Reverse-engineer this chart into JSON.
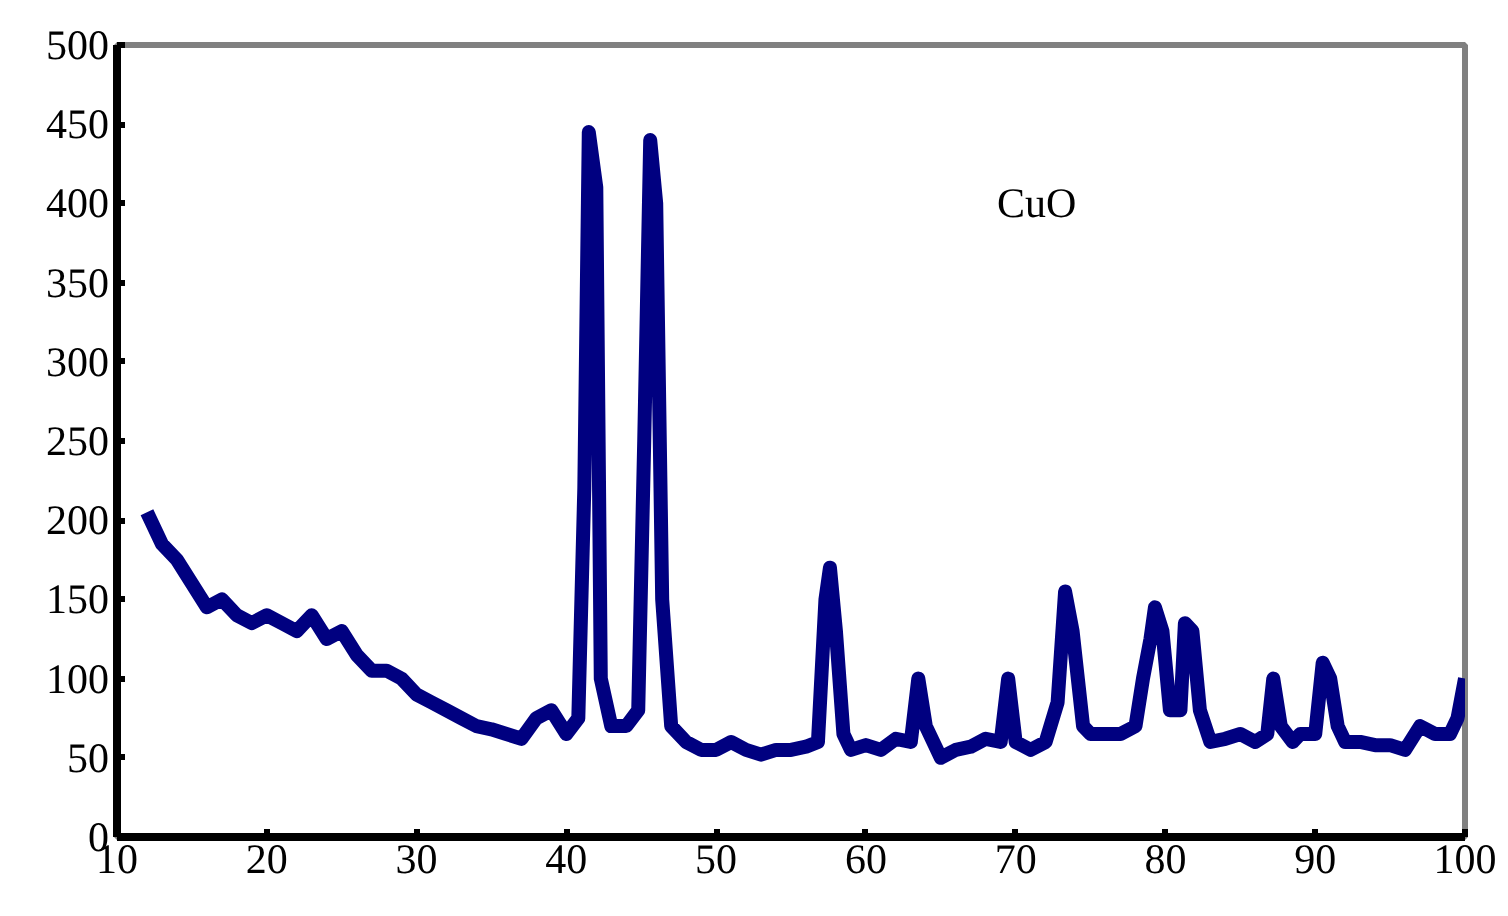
{
  "chart_data": {
    "type": "line",
    "x": [
      12,
      13,
      14,
      15,
      16,
      17,
      18,
      19,
      20,
      21,
      22,
      23,
      24,
      25,
      26,
      27,
      28,
      29,
      30,
      31,
      32,
      33,
      34,
      35,
      36,
      37,
      38,
      39,
      40,
      40.8,
      41.2,
      41.5,
      42,
      42.3,
      43,
      44,
      44.8,
      45.2,
      45.6,
      46,
      46.4,
      47,
      48,
      49,
      50,
      51,
      52,
      53,
      54,
      55,
      56,
      56.8,
      57.3,
      57.6,
      58,
      58.5,
      59,
      60,
      61,
      62,
      63,
      63.5,
      64,
      65,
      66,
      67,
      68,
      69,
      69.5,
      70,
      71,
      72,
      72.8,
      73.3,
      73.8,
      74.5,
      75,
      76,
      77,
      78,
      78.5,
      79,
      79.3,
      79.8,
      80.3,
      81,
      81.3,
      81.8,
      82.3,
      83,
      84,
      85,
      86,
      86.8,
      87.2,
      87.7,
      88.5,
      89,
      90,
      90.5,
      91,
      91.5,
      92,
      93,
      94,
      95,
      96,
      97,
      98,
      99,
      99.5,
      100
    ],
    "series": [
      {
        "color": "#000080",
        "values": [
          205,
          185,
          175,
          160,
          145,
          150,
          140,
          135,
          140,
          135,
          130,
          140,
          125,
          130,
          115,
          105,
          105,
          100,
          90,
          85,
          80,
          75,
          70,
          68,
          65,
          62,
          75,
          80,
          65,
          75,
          220,
          445,
          410,
          100,
          70,
          70,
          80,
          250,
          440,
          400,
          150,
          70,
          60,
          55,
          55,
          60,
          55,
          52,
          55,
          55,
          57,
          60,
          150,
          170,
          130,
          65,
          55,
          58,
          55,
          62,
          60,
          100,
          70,
          50,
          55,
          57,
          62,
          60,
          100,
          60,
          55,
          60,
          85,
          155,
          130,
          70,
          65,
          65,
          65,
          70,
          100,
          125,
          145,
          130,
          80,
          80,
          135,
          130,
          80,
          60,
          62,
          65,
          60,
          65,
          100,
          70,
          60,
          65,
          65,
          110,
          100,
          70,
          60,
          60,
          58,
          58,
          55,
          70,
          65,
          65,
          75,
          100
        ]
      }
    ],
    "xlim": [
      10,
      100
    ],
    "ylim": [
      0,
      500
    ],
    "xticks": [
      10,
      20,
      30,
      40,
      50,
      60,
      70,
      80,
      90,
      100
    ],
    "yticks": [
      0,
      50,
      100,
      150,
      200,
      250,
      300,
      350,
      400,
      450,
      500
    ],
    "grid": false,
    "marker": "none",
    "line_style": "solid",
    "annotations": [
      "CuO"
    ]
  }
}
